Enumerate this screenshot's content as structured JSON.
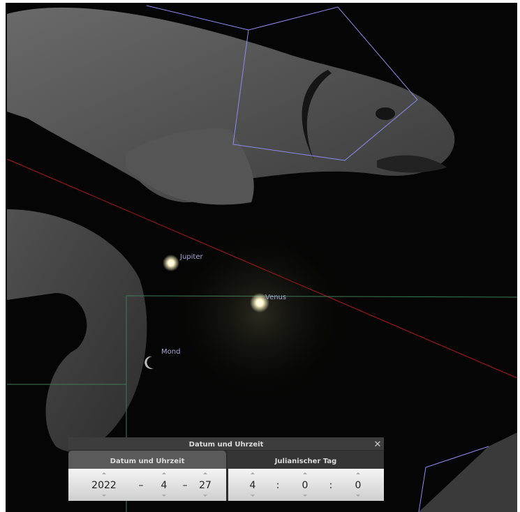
{
  "sky": {
    "objects": [
      {
        "label": "Jupiter"
      },
      {
        "label": "Venus"
      },
      {
        "label": "Mond"
      }
    ]
  },
  "dialog": {
    "title": "Datum und Uhrzeit",
    "close": "✕",
    "tabs": [
      "Datum und Uhrzeit",
      "Julianischer Tag"
    ],
    "date": {
      "year": "2022",
      "sep": "–",
      "month": "4",
      "day": "27"
    },
    "time": {
      "hour": "4",
      "sep": ":",
      "minute": "0",
      "second": "0"
    }
  }
}
